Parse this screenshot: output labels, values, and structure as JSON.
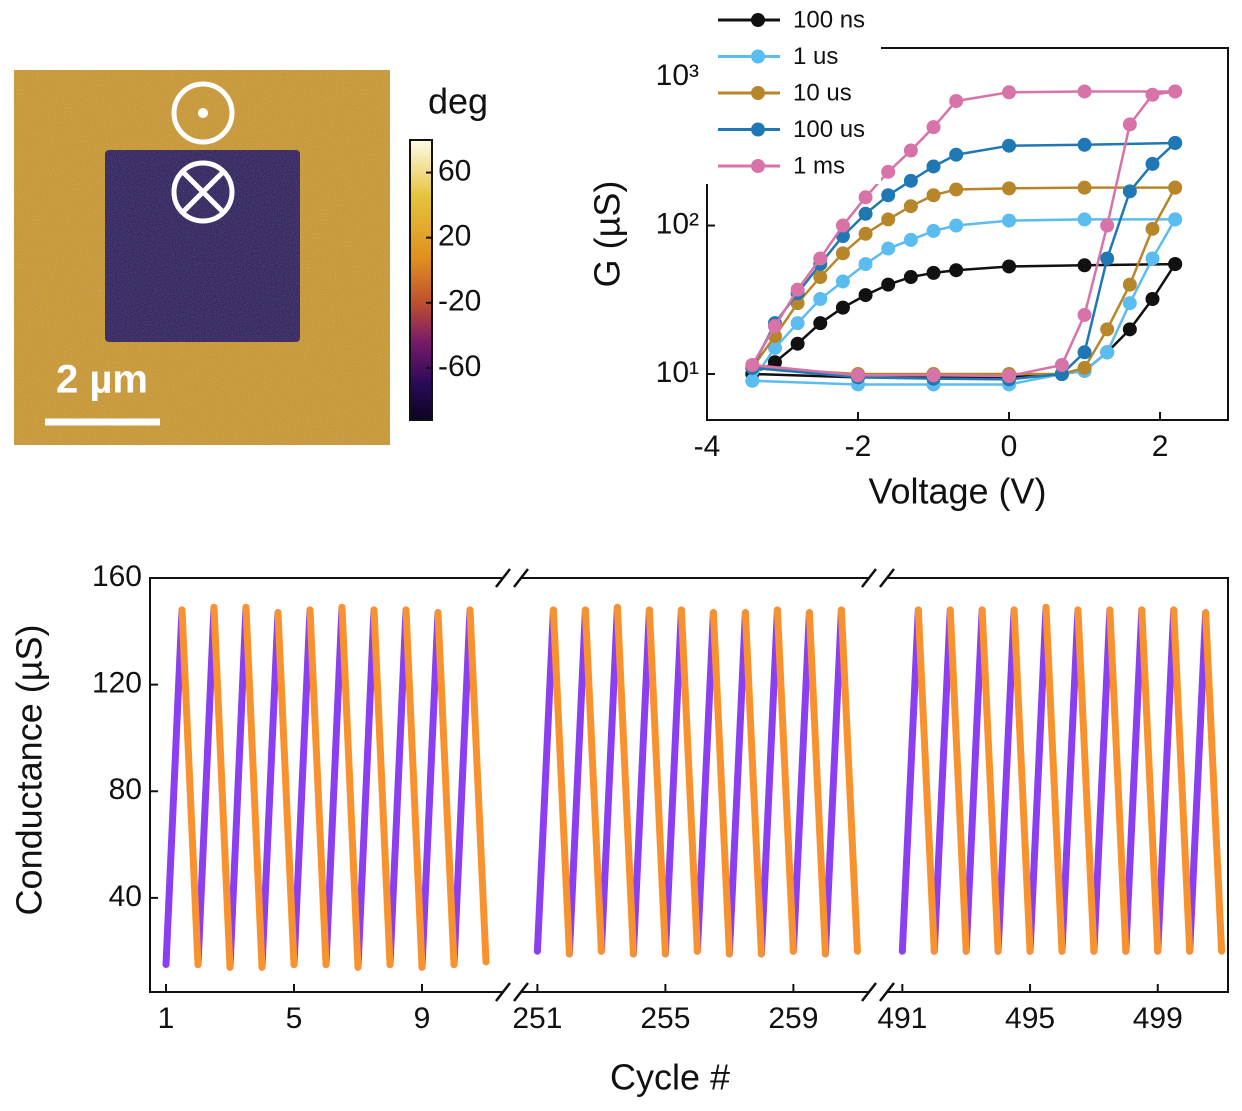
{
  "chart_data": [
    {
      "type": "image",
      "scale_bar_label": "2 µm",
      "colorbar": {
        "label": "deg",
        "clim": [
          -92,
          80
        ],
        "ticks": [
          60,
          20,
          -20,
          -60
        ]
      }
    },
    {
      "type": "line",
      "log_y": true,
      "xlabel": "Voltage (V)",
      "ylabel": "G (µS)",
      "legend": "upper left",
      "xlim": [
        -4,
        2.9
      ],
      "xticks": [
        -4,
        -2,
        0,
        2
      ],
      "ylim": [
        4.9,
        1570
      ],
      "yticks": [
        {
          "value": 10,
          "label": "10¹"
        },
        {
          "value": 100,
          "label": "10²"
        },
        {
          "value": 1000,
          "label": "10³"
        }
      ],
      "x": [
        2.2,
        1.0,
        0,
        -0.7,
        -1.0,
        -1.3,
        -1.6,
        -1.9,
        -2.2,
        -2.5,
        -2.8,
        -3.1,
        -3.4,
        -2,
        -1,
        0,
        0.7,
        1.0,
        1.3,
        1.6,
        1.9,
        2.2
      ],
      "series": [
        {
          "name": "100 ns",
          "color": "#111111",
          "values": [
            55,
            54,
            53,
            50,
            48,
            45,
            40,
            34,
            28,
            22,
            16,
            12,
            10,
            9.5,
            9.5,
            9.5,
            10,
            10.5,
            14,
            20,
            32,
            55
          ]
        },
        {
          "name": "1 us",
          "color": "#5bbcf0",
          "values": [
            110,
            110,
            108,
            100,
            92,
            80,
            70,
            55,
            42,
            32,
            22,
            15,
            9,
            8.5,
            8.5,
            8.5,
            10,
            10.5,
            14,
            30,
            60,
            110
          ]
        },
        {
          "name": "10 us",
          "color": "#b8862a",
          "values": [
            180,
            180,
            178,
            175,
            160,
            135,
            110,
            88,
            65,
            45,
            30,
            18,
            11,
            10,
            10,
            10,
            10,
            11,
            20,
            40,
            95,
            180
          ]
        },
        {
          "name": "100 us",
          "color": "#1f78b4",
          "values": [
            360,
            350,
            345,
            300,
            250,
            200,
            160,
            120,
            85,
            55,
            35,
            22,
            11,
            9.5,
            9.3,
            9.2,
            10,
            14,
            60,
            170,
            260,
            360
          ]
        },
        {
          "name": "1 ms",
          "color": "#d873a8",
          "values": [
            800,
            800,
            790,
            690,
            460,
            320,
            230,
            155,
            100,
            60,
            37,
            21,
            11.5,
            9.8,
            9.8,
            9.7,
            11.5,
            25,
            100,
            480,
            760,
            800
          ]
        }
      ]
    },
    {
      "type": "line",
      "xlabel": "Cycle #",
      "ylabel": "Conductance (µS)",
      "ylim": [
        4.7,
        160
      ],
      "yticks": [
        40,
        80,
        120,
        160
      ],
      "segments": [
        {
          "xlim": [
            0.5,
            11.75
          ],
          "xticks": [
            1,
            5,
            9
          ],
          "series": [
            {
              "color": "#8b3ff0",
              "x": [
                1,
                1.5,
                null,
                2,
                2.5,
                null,
                3,
                3.5,
                null,
                4,
                4.5,
                null,
                5,
                5.5,
                null,
                6,
                6.5,
                null,
                7,
                7.5,
                null,
                8,
                8.5,
                null,
                9,
                9.5,
                null,
                10,
                10.5
              ],
              "values": [
                15,
                148,
                null,
                15,
                149,
                null,
                14,
                149,
                null,
                14,
                147,
                null,
                15,
                148,
                null,
                15,
                149,
                null,
                14,
                148,
                null,
                15,
                148,
                null,
                14,
                147,
                null,
                15,
                148
              ]
            },
            {
              "color": "#f7922e",
              "x": [
                1.5,
                2,
                null,
                2.5,
                3,
                null,
                3.5,
                4,
                null,
                4.5,
                5,
                null,
                5.5,
                6,
                null,
                6.5,
                7,
                null,
                7.5,
                8,
                null,
                8.5,
                9,
                null,
                9.5,
                10,
                null,
                10.5,
                11
              ],
              "values": [
                148,
                15,
                null,
                149,
                14,
                null,
                149,
                14,
                null,
                147,
                15,
                null,
                148,
                15,
                null,
                149,
                14,
                null,
                148,
                15,
                null,
                148,
                14,
                null,
                147,
                15,
                null,
                148,
                16
              ]
            }
          ]
        },
        {
          "xlim": [
            250.3,
            261.55
          ],
          "xticks": [
            251,
            255,
            259
          ],
          "series": [
            {
              "color": "#8b3ff0",
              "x": [
                251,
                251.5,
                null,
                252,
                252.5,
                null,
                253,
                253.5,
                null,
                254,
                254.5,
                null,
                255,
                255.5,
                null,
                256,
                256.5,
                null,
                257,
                257.5,
                null,
                258,
                258.5,
                null,
                259,
                259.5,
                null,
                260,
                260.5
              ],
              "values": [
                20,
                148,
                null,
                19,
                148,
                null,
                20,
                149,
                null,
                19,
                148,
                null,
                19,
                148,
                null,
                20,
                147,
                null,
                19,
                147,
                null,
                19,
                148,
                null,
                20,
                147,
                null,
                19,
                148
              ]
            },
            {
              "color": "#f7922e",
              "x": [
                251.5,
                252,
                null,
                252.5,
                253,
                null,
                253.5,
                254,
                null,
                254.5,
                255,
                null,
                255.5,
                256,
                null,
                256.5,
                257,
                null,
                257.5,
                258,
                null,
                258.5,
                259,
                null,
                259.5,
                260,
                null,
                260.5,
                261
              ],
              "values": [
                148,
                19,
                null,
                148,
                20,
                null,
                149,
                19,
                null,
                148,
                19,
                null,
                148,
                20,
                null,
                147,
                19,
                null,
                147,
                19,
                null,
                148,
                20,
                null,
                147,
                19,
                null,
                148,
                20
              ]
            }
          ]
        },
        {
          "xlim": [
            490.3,
            501.2
          ],
          "xticks": [
            491,
            495,
            499
          ],
          "series": [
            {
              "color": "#8b3ff0",
              "x": [
                491,
                491.5,
                null,
                492,
                492.5,
                null,
                493,
                493.5,
                null,
                494,
                494.5,
                null,
                495,
                495.5,
                null,
                496,
                496.5,
                null,
                497,
                497.5,
                null,
                498,
                498.5,
                null,
                499,
                499.5,
                null,
                500,
                500.5
              ],
              "values": [
                20,
                148,
                null,
                20,
                148,
                null,
                20,
                148,
                null,
                20,
                148,
                null,
                20,
                149,
                null,
                20,
                148,
                null,
                20,
                148,
                null,
                20,
                148,
                null,
                20,
                148,
                null,
                20,
                147
              ]
            },
            {
              "color": "#f7922e",
              "x": [
                491.5,
                492,
                null,
                492.5,
                493,
                null,
                493.5,
                494,
                null,
                494.5,
                495,
                null,
                495.5,
                496,
                null,
                496.5,
                497,
                null,
                497.5,
                498,
                null,
                498.5,
                499,
                null,
                499.5,
                500,
                null,
                500.5,
                501
              ],
              "values": [
                148,
                20,
                null,
                148,
                20,
                null,
                148,
                20,
                null,
                148,
                20,
                null,
                149,
                20,
                null,
                148,
                20,
                null,
                148,
                20,
                null,
                148,
                20,
                null,
                148,
                20,
                null,
                147,
                20
              ]
            }
          ]
        }
      ]
    }
  ]
}
